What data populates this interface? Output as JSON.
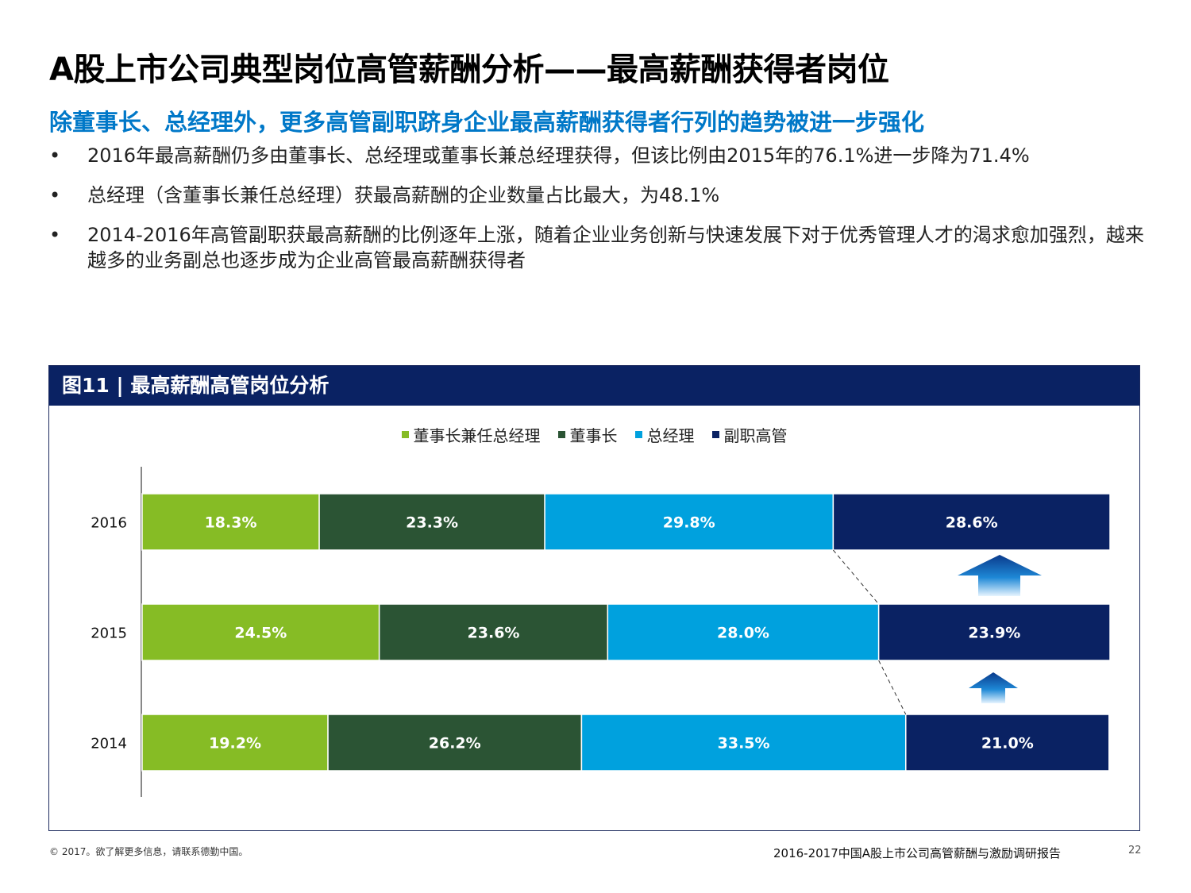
{
  "page": {
    "title": "A股上市公司典型岗位高管薪酬分析——最高薪酬获得者岗位",
    "subtitle": "除董事长、总经理外，更多高管副职跻身企业最高薪酬获得者行列的趋势被进一步强化",
    "bullet_symbol": "•",
    "bullets": [
      "2016年最高薪酬仍多由董事长、总经理或董事长兼总经理获得，但该比例由2015年的76.1%进一步降为71.4%",
      "总经理（含董事长兼任总经理）获最高薪酬的企业数量占比最大，为48.1%",
      "2014-2016年高管副职获最高薪酬的比例逐年上涨，随着企业业务创新与快速发展下对于优秀管理人才的渴求愈加强烈，越来越多的业务副总也逐步成为企业高管最高薪酬获得者"
    ]
  },
  "figure": {
    "header": "图11 | 最高薪酬高管岗位分析"
  },
  "chart_data": {
    "type": "bar",
    "orientation": "horizontal",
    "stacked": true,
    "categories": [
      "2016",
      "2015",
      "2014"
    ],
    "series": [
      {
        "name": "董事长兼任总经理",
        "color": "#86bc25",
        "values": [
          18.3,
          24.5,
          19.2
        ],
        "labels": [
          "18.3%",
          "24.5%",
          "19.2%"
        ]
      },
      {
        "name": "董事长",
        "color": "#2b5434",
        "values": [
          23.3,
          23.6,
          26.2
        ],
        "labels": [
          "23.3%",
          "23.6%",
          "26.2%"
        ]
      },
      {
        "name": "总经理",
        "color": "#00a1de",
        "values": [
          29.8,
          28.0,
          33.5
        ],
        "labels": [
          "29.8%",
          "28.0%",
          "33.5%"
        ]
      },
      {
        "name": "副职高管",
        "color": "#0a2263",
        "values": [
          28.6,
          23.9,
          21.0
        ],
        "labels": [
          "28.6%",
          "23.9%",
          "21.0%"
        ]
      }
    ],
    "xlim": [
      0,
      100
    ],
    "legend": "top-center",
    "annotations": "up arrows between 副职高管 segments indicating yearly increase"
  },
  "footer": {
    "copyright": "© 2017。欲了解更多信息，请联系德勤中国。",
    "report": "2016-2017中国A股上市公司高管薪酬与激励调研报告",
    "page_number": "22"
  }
}
